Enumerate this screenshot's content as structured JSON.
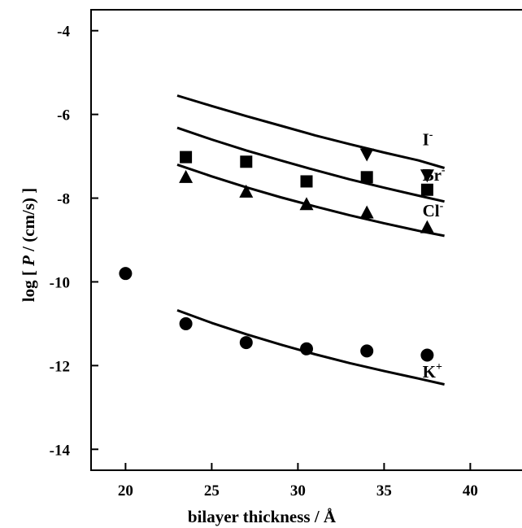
{
  "chart_data": {
    "type": "scatter",
    "title": "",
    "xlabel": "bilayer thickness / Å",
    "ylabel_parts": [
      "log  [ ",
      "P",
      " / (cm/s) ]"
    ],
    "xlim": [
      18,
      43
    ],
    "ylim": [
      -14.5,
      -3.5
    ],
    "x_ticks": [
      20,
      25,
      30,
      35,
      40
    ],
    "y_ticks": [
      -4,
      -6,
      -8,
      -10,
      -12,
      -14
    ],
    "grid": false,
    "series": [
      {
        "label_base": "I",
        "label_sup": "-",
        "marker": "triangle-down",
        "points": [
          [
            34,
            -6.95
          ],
          [
            37.5,
            -7.45
          ]
        ],
        "fit_x": [
          23,
          25,
          27,
          29,
          31,
          33,
          35,
          37,
          38.5
        ],
        "fit_y": [
          -5.55,
          -5.8,
          -6.04,
          -6.27,
          -6.5,
          -6.71,
          -6.91,
          -7.1,
          -7.28
        ]
      },
      {
        "label_base": "Br",
        "label_sup": "-",
        "marker": "square",
        "points": [
          [
            23.5,
            -7.02
          ],
          [
            27,
            -7.13
          ],
          [
            30.5,
            -7.6
          ],
          [
            34,
            -7.5
          ],
          [
            37.5,
            -7.8
          ]
        ],
        "fit_x": [
          23,
          25,
          27,
          29,
          31,
          33,
          35,
          37,
          38.5
        ],
        "fit_y": [
          -6.32,
          -6.6,
          -6.86,
          -7.1,
          -7.33,
          -7.55,
          -7.75,
          -7.94,
          -8.08
        ]
      },
      {
        "label_base": "Cl",
        "label_sup": "-",
        "marker": "triangle-up",
        "points": [
          [
            23.5,
            -7.5
          ],
          [
            27,
            -7.85
          ],
          [
            30.5,
            -8.15
          ],
          [
            34,
            -8.35
          ],
          [
            37.5,
            -8.7
          ]
        ],
        "fit_x": [
          23,
          25,
          27,
          29,
          31,
          33,
          35,
          37,
          38.5
        ],
        "fit_y": [
          -7.2,
          -7.48,
          -7.74,
          -7.98,
          -8.2,
          -8.41,
          -8.6,
          -8.78,
          -8.9
        ]
      },
      {
        "label_base": "K",
        "label_sup": "+",
        "marker": "circle",
        "points": [
          [
            20,
            -9.8
          ],
          [
            23.5,
            -11.0
          ],
          [
            27,
            -11.45
          ],
          [
            30.5,
            -11.6
          ],
          [
            34,
            -11.65
          ],
          [
            37.5,
            -11.75
          ]
        ],
        "fit_x": [
          23,
          25,
          27,
          29,
          31,
          33,
          35,
          37,
          38.5
        ],
        "fit_y": [
          -10.68,
          -10.98,
          -11.25,
          -11.5,
          -11.73,
          -11.94,
          -12.13,
          -12.31,
          -12.45
        ]
      }
    ]
  }
}
